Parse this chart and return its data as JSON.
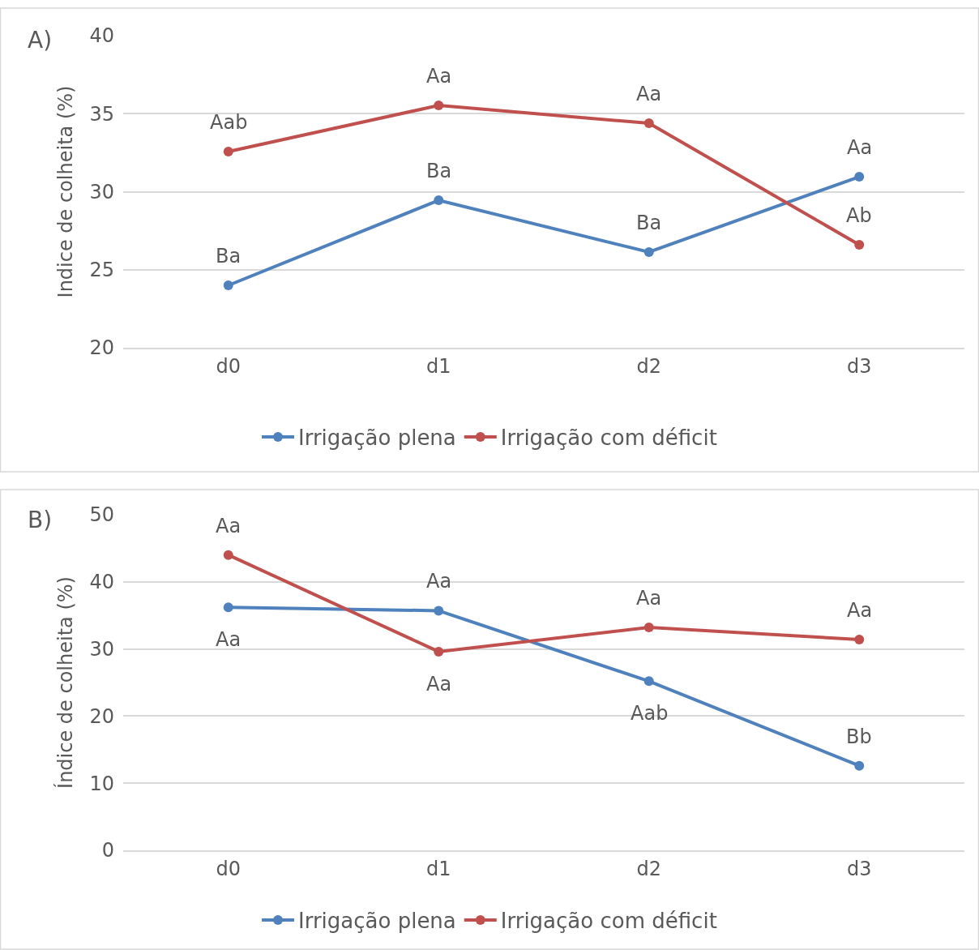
{
  "chart_data": [
    {
      "type": "line",
      "title": "A)",
      "ylabel": "Indice de colheita (%)",
      "categories": [
        "d0",
        "d1",
        "d2",
        "d3"
      ],
      "ylim": [
        20,
        40
      ],
      "yticks": [
        20,
        25,
        30,
        35,
        40
      ],
      "grid": "y",
      "legend": "bottom",
      "marker": "circle",
      "line_style": "solid",
      "series": [
        {
          "name": "Irrigação plena",
          "color": "#4f81bd",
          "values": [
            24.0,
            29.45,
            26.13,
            30.96
          ]
        },
        {
          "name": "Irrigação com déficit",
          "color": "#c0504d",
          "values": [
            32.57,
            35.53,
            34.39,
            26.6
          ]
        }
      ],
      "annotations": [
        {
          "text": "Aab",
          "x": "d0",
          "y": 32.57
        },
        {
          "text": "Aa",
          "x": "d1",
          "y": 35.53
        },
        {
          "text": "Aa",
          "x": "d2",
          "y": 34.39
        },
        {
          "text": "Aa",
          "x": "d3",
          "y": 30.96
        },
        {
          "text": "Ba",
          "x": "d0",
          "y": 24.0
        },
        {
          "text": "Ba",
          "x": "d1",
          "y": 29.45
        },
        {
          "text": "Ba",
          "x": "d2",
          "y": 26.13
        },
        {
          "text": "Ab",
          "x": "d3",
          "y": 26.6
        }
      ]
    },
    {
      "type": "line",
      "title": "B)",
      "ylabel": "Índice de colheita (%)",
      "categories": [
        "d0",
        "d1",
        "d2",
        "d3"
      ],
      "ylim": [
        0,
        50
      ],
      "yticks": [
        0,
        10,
        20,
        30,
        40,
        50
      ],
      "grid": "y",
      "legend": "bottom",
      "marker": "circle",
      "line_style": "solid",
      "series": [
        {
          "name": "Irrigação plena",
          "color": "#4f81bd",
          "values": [
            36.2,
            35.7,
            25.2,
            12.6
          ]
        },
        {
          "name": "Irrigação com déficit",
          "color": "#c0504d",
          "values": [
            44.0,
            29.6,
            33.2,
            31.4
          ]
        }
      ],
      "annotations": [
        {
          "text": "Aa",
          "x": "d0",
          "y": 44.0
        },
        {
          "text": "Aa",
          "x": "d0",
          "y": 36.2
        },
        {
          "text": "Aa",
          "x": "d1",
          "y": 35.7
        },
        {
          "text": "Aa",
          "x": "d1",
          "y": 29.6
        },
        {
          "text": "Aa",
          "x": "d2",
          "y": 33.2
        },
        {
          "text": "Aab",
          "x": "d2",
          "y": 25.2
        },
        {
          "text": "Aa",
          "x": "d3",
          "y": 31.4
        },
        {
          "text": "Bb",
          "x": "d3",
          "y": 12.6
        }
      ]
    }
  ]
}
